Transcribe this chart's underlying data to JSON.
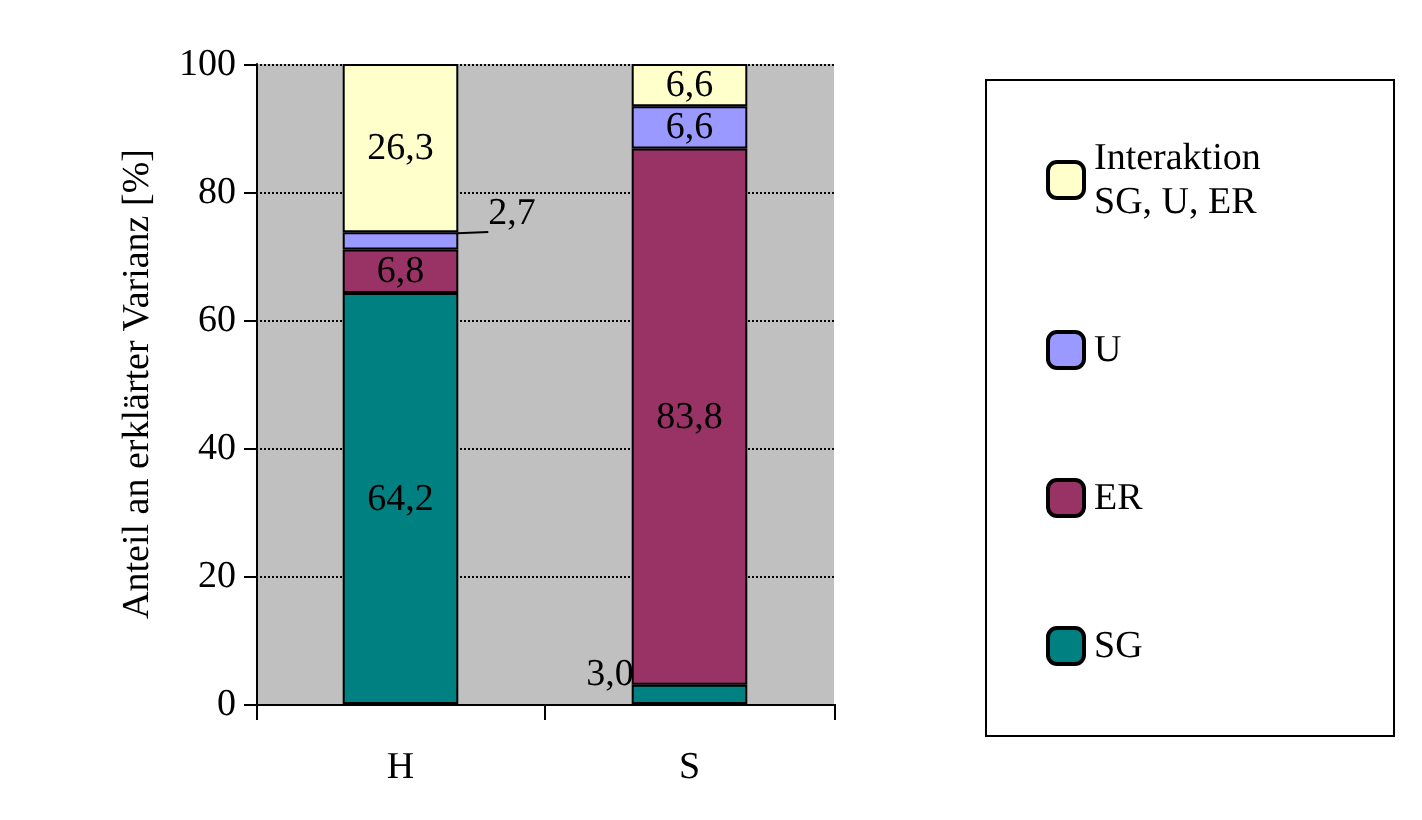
{
  "chart_data": {
    "type": "bar",
    "stacked": true,
    "ylabel": "Anteil an erklärter Varianz [%]",
    "categories": [
      "H",
      "S"
    ],
    "series": [
      {
        "name": "SG",
        "color": "#008080",
        "values": [
          64.2,
          3.0
        ],
        "value_labels": [
          "64,2",
          "3,0"
        ]
      },
      {
        "name": "ER",
        "color": "#993366",
        "values": [
          6.8,
          83.8
        ],
        "value_labels": [
          "6,8",
          "83,8"
        ]
      },
      {
        "name": "U",
        "color": "#9999ff",
        "values": [
          2.7,
          6.6
        ],
        "value_labels": [
          "2,7",
          "6,6"
        ]
      },
      {
        "name": "Interaktion SG, U, ER",
        "color": "#ffffcc",
        "values": [
          26.3,
          6.6
        ],
        "value_labels": [
          "26,3",
          "6,6"
        ]
      }
    ],
    "ylim": [
      0,
      100
    ],
    "yticks": [
      0,
      20,
      40,
      60,
      80,
      100
    ],
    "grid": "y",
    "legend": "right"
  }
}
